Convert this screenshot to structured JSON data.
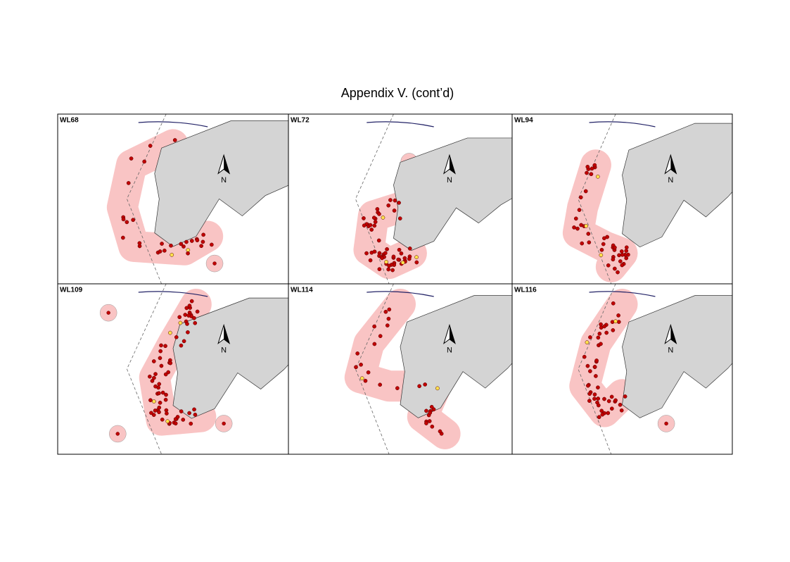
{
  "title": "Appendix V.  (cont’d)",
  "panels": [
    {
      "label": "WL68",
      "north": "N"
    },
    {
      "label": "WL72",
      "north": "N"
    },
    {
      "label": "WL94",
      "north": "N"
    },
    {
      "label": "WL109",
      "north": "N"
    },
    {
      "label": "WL114",
      "north": "N"
    },
    {
      "label": "WL116",
      "north": "N"
    }
  ]
}
